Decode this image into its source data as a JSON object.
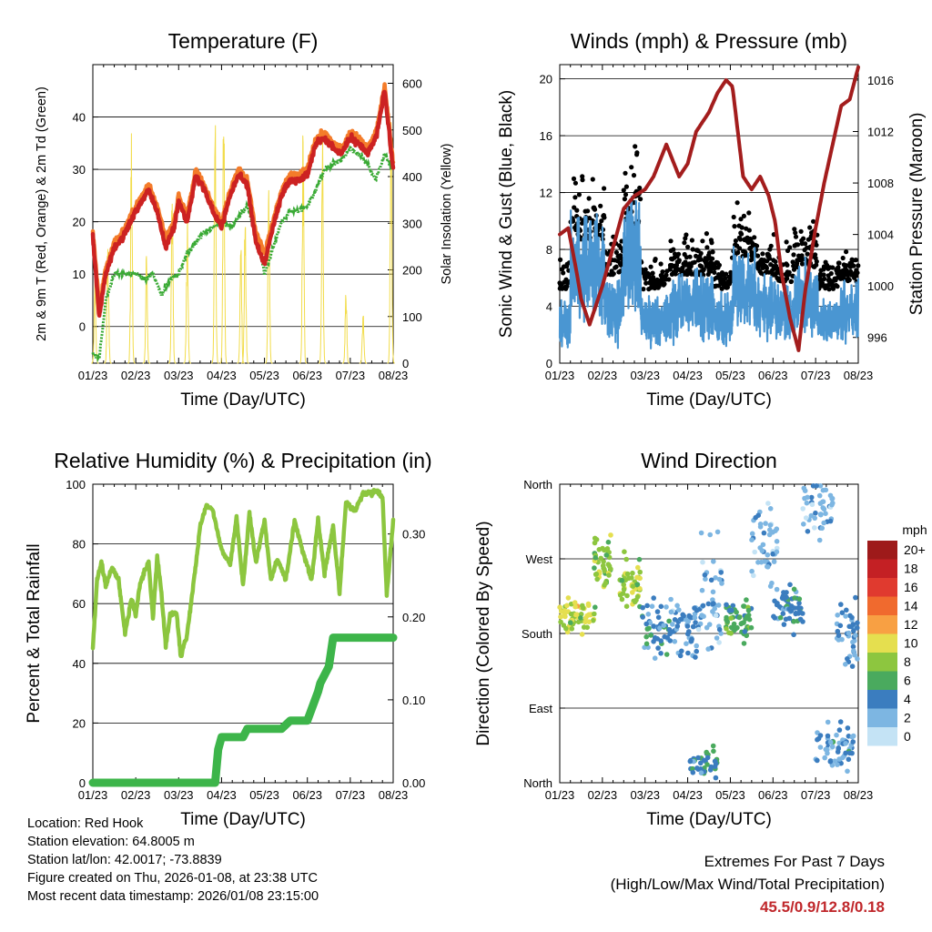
{
  "x_ticks": [
    "01/23",
    "02/23",
    "03/23",
    "04/23",
    "05/23",
    "06/23",
    "07/23",
    "08/23"
  ],
  "x_label": "Time (Day/UTC)",
  "colors": {
    "temp_2m": "#cc2222",
    "temp_9m": "#f47c2a",
    "dewpoint": "#3aaa35",
    "solar": "#f2dc4a",
    "wind_sonic": "#4a96d2",
    "gust": "#000000",
    "pressure": "#a31d1d",
    "rh": "#8cc63f",
    "rain": "#3db54a",
    "extremes": "#c0282c"
  },
  "chart_data": [
    {
      "type": "line",
      "title": "Temperature (F)",
      "xlabel": "Time (Day/UTC)",
      "ylabel": "2m & 9m T (Red, Orange) & 2m Td (Green)",
      "y2label": "Solar Insolation (Yellow)",
      "ylim": [
        -7,
        50
      ],
      "y_ticks": [
        0,
        10,
        20,
        30,
        40
      ],
      "y2lim": [
        0,
        640
      ],
      "y2_ticks": [
        0,
        100,
        200,
        300,
        400,
        500,
        600
      ],
      "x_ticks": [
        "01/23",
        "02/23",
        "03/23",
        "04/23",
        "05/23",
        "06/23",
        "07/23",
        "08/23"
      ],
      "series": [
        {
          "name": "2m T",
          "axis": "left",
          "color_key": "temp_2m",
          "x": [
            0,
            0.05,
            0.15,
            0.3,
            0.5,
            0.7,
            1.0,
            1.3,
            1.5,
            1.7,
            1.9,
            2.0,
            2.2,
            2.4,
            2.6,
            2.8,
            3.0,
            3.2,
            3.4,
            3.6,
            3.8,
            4.0,
            4.2,
            4.4,
            4.6,
            4.8,
            5.0,
            5.2,
            5.4,
            5.6,
            5.8,
            6.0,
            6.2,
            6.4,
            6.6,
            6.8,
            7.0
          ],
          "values": [
            17,
            12,
            2,
            10,
            15,
            17,
            22,
            26,
            22,
            15,
            19,
            24,
            20,
            29,
            26,
            22,
            19,
            25,
            29,
            27,
            16,
            12,
            19,
            25,
            28,
            28,
            29,
            35,
            36,
            34,
            33,
            36,
            35,
            33,
            36,
            45,
            30
          ]
        },
        {
          "name": "9m T",
          "axis": "left",
          "color_key": "temp_9m",
          "x": [
            0,
            0.15,
            0.3,
            0.5,
            0.7,
            1.0,
            1.3,
            1.5,
            1.7,
            1.9,
            2.0,
            2.2,
            2.4,
            2.6,
            2.8,
            3.0,
            3.2,
            3.4,
            3.6,
            3.8,
            4.0,
            4.2,
            4.4,
            4.6,
            4.8,
            5.0,
            5.2,
            5.4,
            5.6,
            5.8,
            6.0,
            6.2,
            6.4,
            6.6,
            6.8,
            7.0
          ],
          "values": [
            18,
            4,
            11,
            16,
            18,
            23,
            27,
            23,
            17,
            20,
            25,
            21,
            30,
            27,
            23,
            20,
            26,
            30,
            28,
            18,
            14,
            20,
            26,
            29,
            29,
            30,
            36,
            37,
            35,
            34,
            37,
            36,
            34,
            37,
            46,
            31
          ]
        },
        {
          "name": "2m Td",
          "axis": "left",
          "color_key": "dewpoint",
          "x": [
            0,
            0.15,
            0.3,
            0.5,
            0.8,
            1.0,
            1.2,
            1.4,
            1.6,
            1.8,
            2.0,
            2.2,
            2.4,
            2.6,
            2.8,
            3.0,
            3.2,
            3.4,
            3.6,
            3.8,
            4.0,
            4.2,
            4.4,
            4.6,
            4.8,
            5.0,
            5.2,
            5.4,
            5.6,
            5.8,
            6.0,
            6.2,
            6.4,
            6.6,
            6.8,
            7.0
          ],
          "values": [
            -5,
            -6,
            5,
            10,
            10,
            10,
            9,
            10,
            6,
            9,
            10,
            14,
            16,
            18,
            19,
            20,
            19,
            21,
            23,
            18,
            10,
            15,
            20,
            22,
            22,
            23,
            26,
            30,
            31,
            32,
            34,
            33,
            31,
            28,
            33,
            30
          ]
        },
        {
          "name": "Solar Insolation",
          "axis": "right",
          "color_key": "solar",
          "peaks_x": [
            0.05,
            0.35,
            0.9,
            1.25,
            1.85,
            2.2,
            2.85,
            3.05,
            3.45,
            3.55,
            4.1,
            4.9,
            5.35,
            5.9,
            6.3,
            6.95
          ],
          "peaks_y": [
            220,
            300,
            520,
            240,
            440,
            340,
            600,
            620,
            290,
            360,
            400,
            520,
            560,
            180,
            130,
            610
          ]
        }
      ]
    },
    {
      "type": "scatter",
      "title": "Winds (mph) & Pressure (mb)",
      "xlabel": "Time (Day/UTC)",
      "ylabel": "Sonic Wind & Gust (Blue, Black)",
      "y2label": "Station Pressure (Maroon)",
      "ylim": [
        0,
        21
      ],
      "y_ticks": [
        0,
        4,
        8,
        12,
        16,
        20
      ],
      "y2lim": [
        994,
        1017.2
      ],
      "y2_ticks": [
        996,
        1000,
        1004,
        1008,
        1012,
        1016
      ],
      "x_ticks": [
        "01/23",
        "02/23",
        "03/23",
        "04/23",
        "05/23",
        "06/23",
        "07/23",
        "08/23"
      ],
      "wind_segments": [
        {
          "start": 0.0,
          "end": 0.25,
          "mean": 3.0
        },
        {
          "start": 0.25,
          "end": 1.05,
          "mean": 6.5
        },
        {
          "start": 1.05,
          "end": 1.5,
          "mean": 4.0
        },
        {
          "start": 1.5,
          "end": 1.9,
          "mean": 7.5
        },
        {
          "start": 1.9,
          "end": 2.6,
          "mean": 3.0
        },
        {
          "start": 2.6,
          "end": 3.6,
          "mean": 4.0
        },
        {
          "start": 3.6,
          "end": 4.05,
          "mean": 3.0
        },
        {
          "start": 4.05,
          "end": 4.6,
          "mean": 5.0
        },
        {
          "start": 4.6,
          "end": 5.05,
          "mean": 4.0
        },
        {
          "start": 5.05,
          "end": 5.5,
          "mean": 3.5
        },
        {
          "start": 5.5,
          "end": 6.05,
          "mean": 4.5
        },
        {
          "start": 6.05,
          "end": 6.55,
          "mean": 3.0
        },
        {
          "start": 6.55,
          "end": 7.0,
          "mean": 3.5
        }
      ],
      "pressure": {
        "name": "Station Pressure",
        "color_key": "pressure",
        "x": [
          0,
          0.2,
          0.4,
          0.5,
          0.7,
          0.85,
          1.0,
          1.25,
          1.5,
          1.75,
          2.0,
          2.2,
          2.5,
          2.8,
          3.0,
          3.2,
          3.5,
          3.7,
          3.9,
          4.05,
          4.3,
          4.5,
          4.7,
          4.9,
          5.05,
          5.2,
          5.4,
          5.6,
          5.75,
          6.0,
          6.2,
          6.4,
          6.6,
          6.8,
          7.0
        ],
        "values": [
          1004,
          1004.5,
          1001,
          999,
          997,
          998.5,
          1000,
          1003,
          1006,
          1007,
          1007.5,
          1008.5,
          1011,
          1008.5,
          1009.5,
          1012,
          1013.5,
          1015,
          1016,
          1015.5,
          1008.5,
          1007.5,
          1008.5,
          1007,
          1005,
          1001,
          997.5,
          995,
          999.5,
          1004.5,
          1008,
          1011,
          1014,
          1014.5,
          1017
        ]
      }
    },
    {
      "type": "line",
      "title": "Relative Humidity (%) & Precipitation (in)",
      "xlabel": "Time (Day/UTC)",
      "ylabel": "Percent & Total Rainfall",
      "ylim": [
        0,
        100
      ],
      "y_ticks": [
        0,
        20,
        40,
        60,
        80,
        100
      ],
      "y2lim": [
        0,
        0.36
      ],
      "y2_ticks": [
        0.0,
        0.1,
        0.2,
        0.3
      ],
      "y2_tick_labels": [
        "0.00",
        "0.10",
        "0.20",
        "0.30"
      ],
      "x_ticks": [
        "01/23",
        "02/23",
        "03/23",
        "04/23",
        "05/23",
        "06/23",
        "07/23",
        "08/23"
      ],
      "series": [
        {
          "name": "Relative Humidity",
          "axis": "left",
          "color_key": "rh",
          "x": [
            0,
            0.1,
            0.2,
            0.3,
            0.45,
            0.6,
            0.75,
            0.9,
            1.0,
            1.1,
            1.3,
            1.4,
            1.5,
            1.6,
            1.7,
            1.8,
            1.95,
            2.05,
            2.2,
            2.4,
            2.5,
            2.65,
            2.8,
            3.0,
            3.2,
            3.35,
            3.5,
            3.65,
            3.8,
            4.0,
            4.15,
            4.3,
            4.5,
            4.7,
            4.9,
            5.1,
            5.25,
            5.4,
            5.6,
            5.75,
            5.9,
            6.1,
            6.3,
            6.5,
            6.6,
            6.75,
            6.85,
            7.0
          ],
          "values": [
            45,
            68,
            74,
            66,
            72,
            68,
            50,
            62,
            56,
            67,
            74,
            55,
            76,
            63,
            46,
            56,
            57,
            42,
            50,
            73,
            86,
            93,
            91,
            78,
            73,
            89,
            66,
            90,
            74,
            88,
            68,
            75,
            68,
            88,
            77,
            68,
            88,
            70,
            86,
            64,
            94,
            91,
            97,
            97,
            98,
            96,
            63,
            88
          ]
        },
        {
          "name": "Total Rainfall",
          "axis": "right",
          "color_key": "rain",
          "x": [
            0,
            2.85,
            2.92,
            3.0,
            3.5,
            3.6,
            4.0,
            4.4,
            4.6,
            5.0,
            5.25,
            5.3,
            5.5,
            5.6,
            7.0
          ],
          "values": [
            0.0,
            0.0,
            0.04,
            0.055,
            0.055,
            0.065,
            0.065,
            0.065,
            0.075,
            0.075,
            0.11,
            0.12,
            0.14,
            0.175,
            0.175
          ]
        }
      ]
    },
    {
      "type": "scatter",
      "title": "Wind Direction",
      "xlabel": "Time (Day/UTC)",
      "ylabel": "Direction (Colored By Speed)",
      "y_ticks": [
        0,
        90,
        180,
        270,
        360
      ],
      "y_tick_labels": [
        "North",
        "East",
        "South",
        "West",
        "North"
      ],
      "ylim": [
        0,
        360
      ],
      "x_ticks": [
        "01/23",
        "02/23",
        "03/23",
        "04/23",
        "05/23",
        "06/23",
        "07/23",
        "08/23"
      ],
      "direction_clusters": [
        {
          "x0": 0.0,
          "x1": 0.9,
          "dir": 200,
          "spread": 30,
          "speed": 9,
          "count": 60
        },
        {
          "x0": 0.8,
          "x1": 1.2,
          "dir": 265,
          "spread": 55,
          "speed": 8,
          "count": 45
        },
        {
          "x0": 1.4,
          "x1": 1.9,
          "dir": 240,
          "spread": 40,
          "speed": 8,
          "count": 50
        },
        {
          "x0": 1.9,
          "x1": 2.6,
          "dir": 185,
          "spread": 45,
          "speed": 4,
          "count": 50
        },
        {
          "x0": 2.6,
          "x1": 3.3,
          "dir": 185,
          "spread": 50,
          "speed": 3,
          "count": 55
        },
        {
          "x0": 3.3,
          "x1": 3.8,
          "dir": 220,
          "spread": 100,
          "speed": 2,
          "count": 45
        },
        {
          "x0": 3.0,
          "x1": 3.7,
          "dir": 25,
          "spread": 30,
          "speed": 5,
          "count": 40
        },
        {
          "x0": 3.9,
          "x1": 4.5,
          "dir": 195,
          "spread": 35,
          "speed": 6,
          "count": 60
        },
        {
          "x0": 4.5,
          "x1": 5.1,
          "dir": 290,
          "spread": 70,
          "speed": 2,
          "count": 45
        },
        {
          "x0": 5.0,
          "x1": 5.7,
          "dir": 210,
          "spread": 40,
          "speed": 4,
          "count": 55
        },
        {
          "x0": 5.7,
          "x1": 6.4,
          "dir": 330,
          "spread": 50,
          "speed": 2,
          "count": 45
        },
        {
          "x0": 6.0,
          "x1": 6.9,
          "dir": 40,
          "spread": 40,
          "speed": 3,
          "count": 60
        },
        {
          "x0": 6.5,
          "x1": 7.0,
          "dir": 180,
          "spread": 60,
          "speed": 3,
          "count": 40
        }
      ],
      "legend": {
        "title": "mph",
        "labels": [
          "20+",
          "18",
          "16",
          "14",
          "12",
          "10",
          "8",
          "6",
          "4",
          "2",
          "0"
        ],
        "colors": [
          "#9e1a1a",
          "#c42024",
          "#e03a2f",
          "#f06a2e",
          "#f8a043",
          "#e5df4f",
          "#8dc63f",
          "#4aaa5e",
          "#3b7dbf",
          "#7db6e2",
          "#c4e3f5"
        ]
      }
    }
  ],
  "footer": {
    "location": "Location: Red Hook",
    "elevation": "Station elevation: 64.8005 m",
    "latlon": "Station lat/lon: 42.0017; -73.8839",
    "created": "Figure created on Thu, 2026-01-08, at 23:38 UTC",
    "recent": "Most recent data timestamp: 2026/01/08 23:15:00"
  },
  "extremes": {
    "heading": "Extremes For Past 7 Days",
    "subheading": "(High/Low/Max Wind/Total Precipitation)",
    "values": "45.5/0.9/12.8/0.18"
  }
}
